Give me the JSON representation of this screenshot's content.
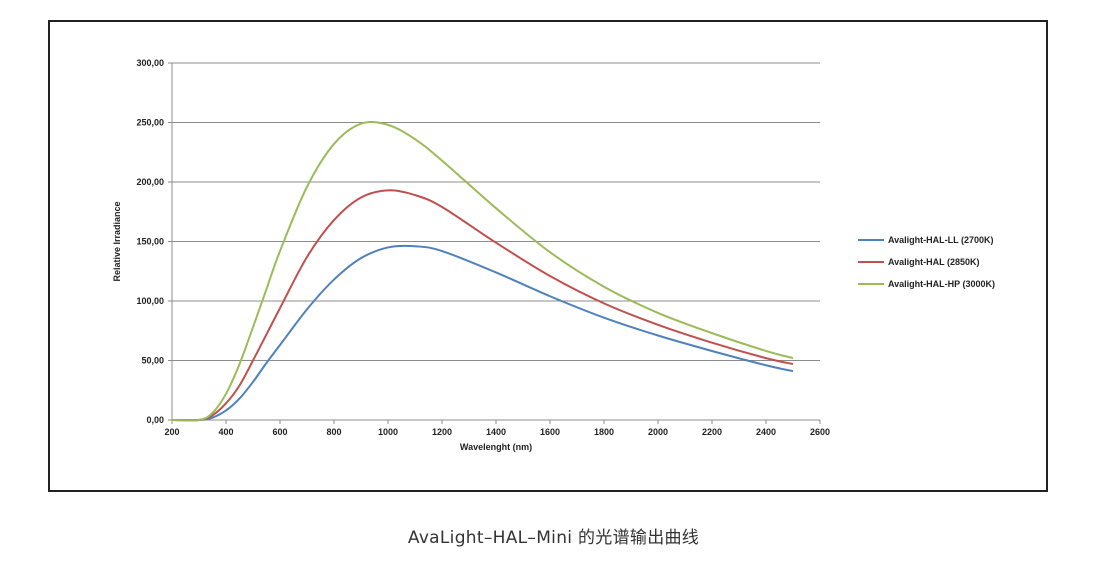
{
  "caption": "AvaLight–HAL–Mini 的光谱输出曲线",
  "chart_data": {
    "type": "line",
    "title": "",
    "xlabel": "Wavelenght (nm)",
    "ylabel": "Relative Irradiance",
    "xlim": [
      200,
      2600
    ],
    "ylim": [
      0,
      300
    ],
    "x_ticks": [
      "200",
      "400",
      "600",
      "800",
      "1000",
      "1200",
      "1400",
      "1600",
      "1800",
      "2000",
      "2200",
      "2400",
      "2600"
    ],
    "y_ticks": [
      "0,00",
      "50,00",
      "100,00",
      "150,00",
      "200,00",
      "250,00",
      "300,00"
    ],
    "grid": "horizontal",
    "legend_position": "right",
    "x": [
      300,
      350,
      400,
      450,
      500,
      550,
      600,
      700,
      800,
      900,
      1000,
      1100,
      1200,
      1400,
      1600,
      1800,
      2000,
      2200,
      2400,
      2500
    ],
    "series": [
      {
        "name": "Avalight-HAL-LL (2700K)",
        "color": "#4f81bd",
        "values": [
          0,
          2,
          8,
          18,
          32,
          48,
          63,
          93,
          118,
          136,
          145,
          146,
          142,
          124,
          104,
          86,
          71,
          58,
          46,
          41
        ]
      },
      {
        "name": "Avalight-HAL (2850K)",
        "color": "#c0504d",
        "values": [
          0,
          4,
          14,
          29,
          50,
          72,
          94,
          137,
          168,
          187,
          193,
          189,
          179,
          149,
          121,
          98,
          80,
          65,
          52,
          47
        ]
      },
      {
        "name": "Avalight-HAL-HP (3000K)",
        "color": "#9bbb59",
        "values": [
          0,
          6,
          22,
          47,
          78,
          110,
          142,
          196,
          232,
          249,
          248,
          236,
          218,
          178,
          141,
          112,
          90,
          73,
          58,
          52
        ]
      }
    ]
  }
}
